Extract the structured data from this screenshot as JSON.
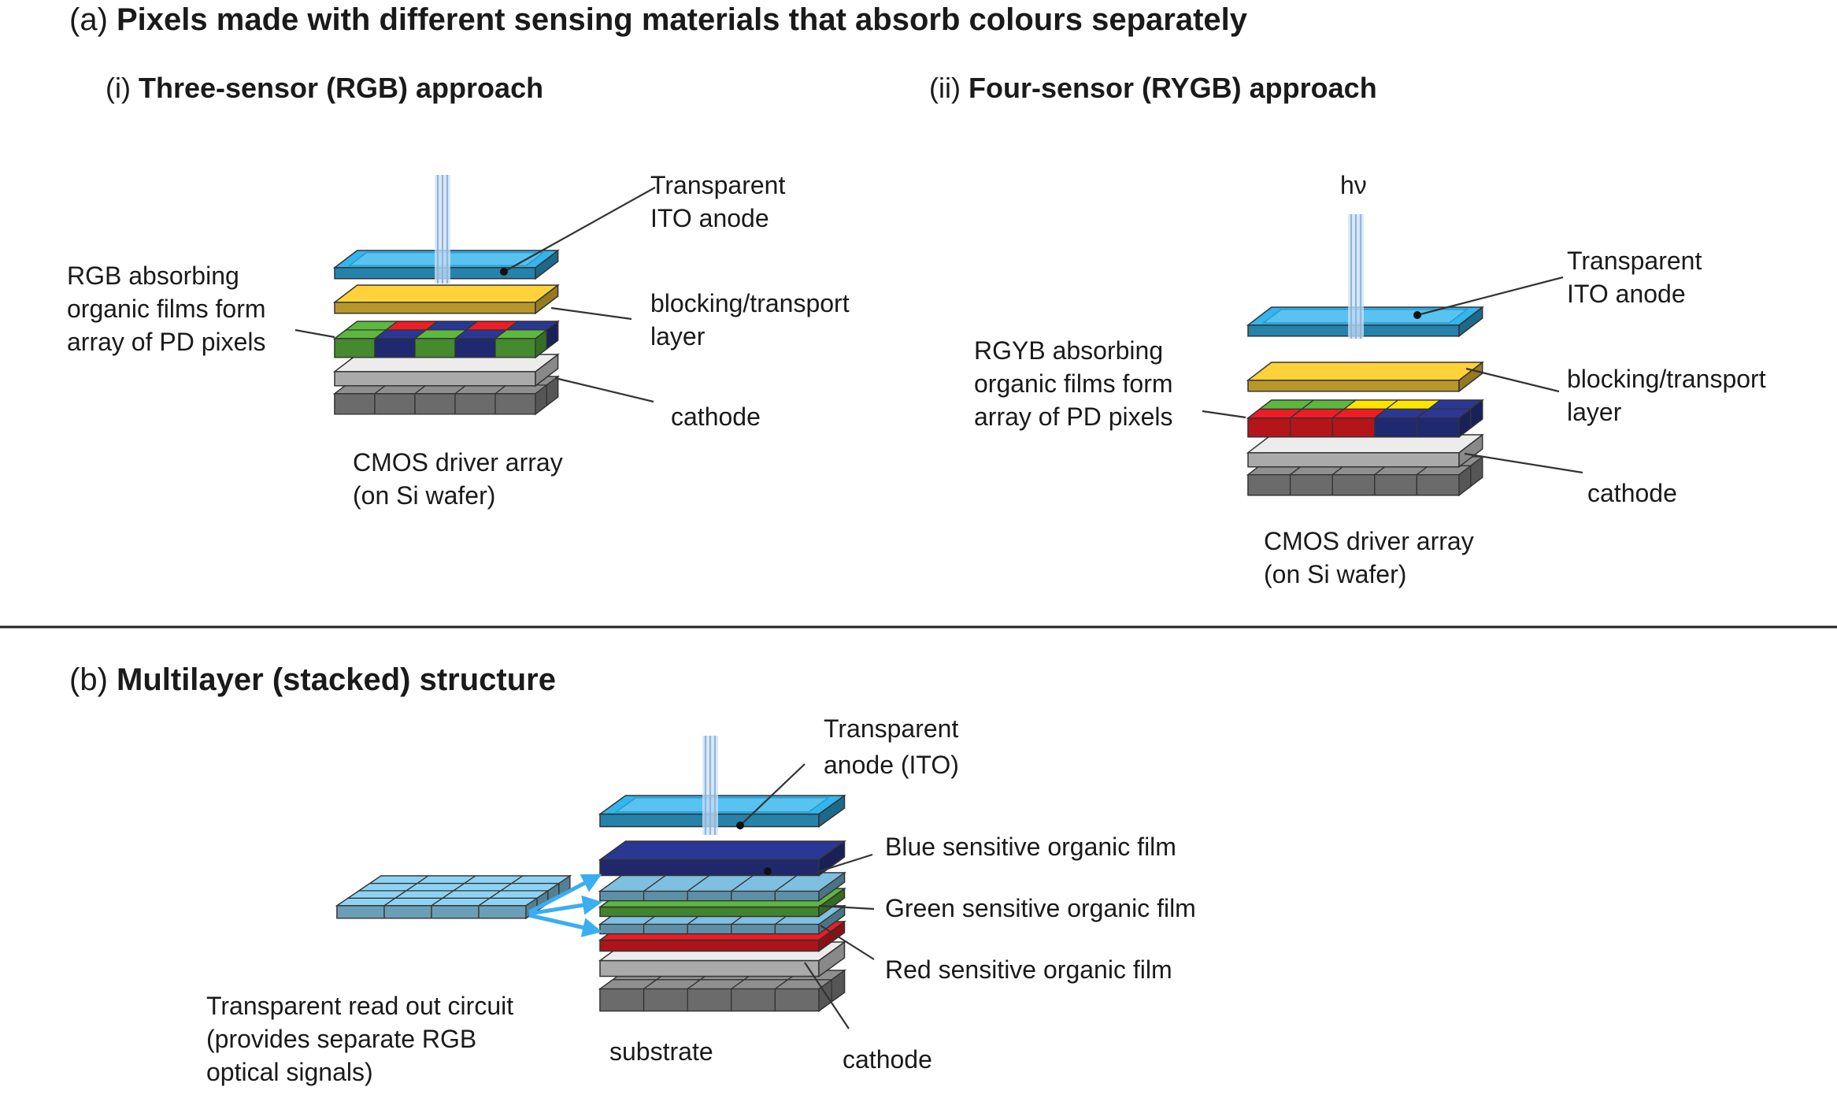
{
  "part_a": {
    "prefix": "(a) ",
    "title": "Pixels made with different sensing materials that absorb colours separately",
    "rgb": {
      "prefix": "(i) ",
      "title": "Three-sensor (RGB) approach",
      "anode": [
        "Transparent",
        "ITO anode"
      ],
      "films": [
        "RGB absorbing",
        "organic films form",
        "array of PD pixels"
      ],
      "blocking": [
        "blocking/transport",
        "layer"
      ],
      "cathode": "cathode",
      "cmos": [
        "CMOS driver array",
        "(on Si wafer)"
      ]
    },
    "rygb": {
      "prefix": "(ii) ",
      "title": "Four-sensor (RYGB) approach",
      "light": "hν",
      "anode": [
        "Transparent",
        "ITO anode"
      ],
      "films": [
        "RGYB absorbing",
        "organic films form",
        "array of PD pixels"
      ],
      "blocking": [
        "blocking/transport",
        "layer"
      ],
      "cathode": "cathode",
      "cmos": [
        "CMOS driver array",
        "(on Si wafer)"
      ]
    }
  },
  "part_b": {
    "prefix": "(b) ",
    "title": "Multilayer (stacked) structure",
    "anode": [
      "Transparent",
      "anode (ITO)"
    ],
    "blue": "Blue sensitive organic film",
    "green": "Green sensitive organic film",
    "red": "Red sensitive organic film",
    "readout": [
      "Transparent read out circuit",
      "(provides separate RGB",
      "optical signals)"
    ],
    "substrate": "substrate",
    "cathode": "cathode"
  },
  "colors": {
    "ito_blue": "#33b5ee",
    "blocking_yellow": "#ffd23a",
    "pixel_red": "#ee1c24",
    "pixel_green": "#5cb83e",
    "pixel_blue": "#2b3795",
    "pixel_yellow": "#ffe600",
    "cathode_gray": "#ececec",
    "cmos_gray": "#8f8f8f",
    "arrow_blue": "#3aaef0"
  }
}
